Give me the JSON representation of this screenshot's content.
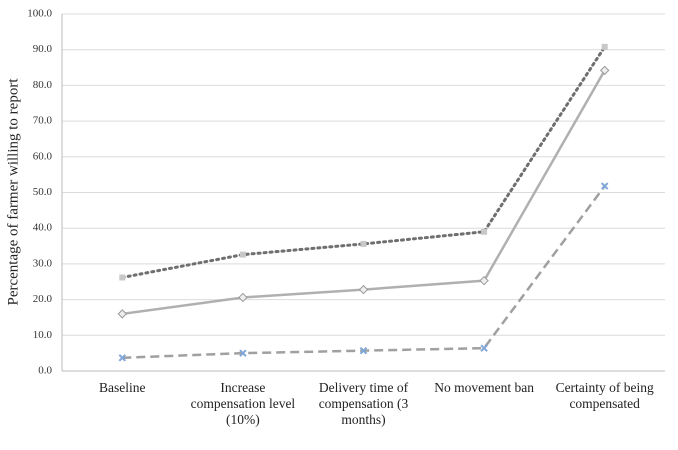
{
  "chart_data": {
    "type": "line",
    "y_label": "Percentage of farmer willing to report",
    "categories": [
      "Baseline",
      "Increase compensation level (10%)",
      "Delivery time of compensation (3 months)",
      "No movement ban",
      "Certainty of being compensated"
    ],
    "series": [
      {
        "color": "#6f6f6f",
        "dash": "dotted",
        "marker": "square",
        "marker_color": "#c8c8c8",
        "values": [
          26.2,
          32.6,
          35.6,
          39.0,
          90.8
        ]
      },
      {
        "color": "#b0b0b0",
        "dash": "solid",
        "marker": "diamond",
        "marker_color": "#d4d4d4",
        "values": [
          16.0,
          20.6,
          22.8,
          25.3,
          84.2
        ]
      },
      {
        "color": "#a0a0a0",
        "dash": "dashed",
        "marker": "x",
        "marker_color": "#7fa6d8",
        "values": [
          3.7,
          5.0,
          5.7,
          6.4,
          51.8
        ]
      }
    ],
    "ylim": [
      0,
      100
    ],
    "yticks": [
      {
        "value": 0,
        "label": "0.0"
      },
      {
        "value": 10,
        "label": "10.0"
      },
      {
        "value": 20,
        "label": "20.0"
      },
      {
        "value": 30,
        "label": "30.0"
      },
      {
        "value": 40,
        "label": "40.0"
      },
      {
        "value": 50,
        "label": "50.0"
      },
      {
        "value": 60,
        "label": "60.0"
      },
      {
        "value": 70,
        "label": "70.0"
      },
      {
        "value": 80,
        "label": "80.0"
      },
      {
        "value": 90,
        "label": "90.0"
      },
      {
        "value": 100,
        "label": "100.0"
      }
    ],
    "grid": true
  }
}
